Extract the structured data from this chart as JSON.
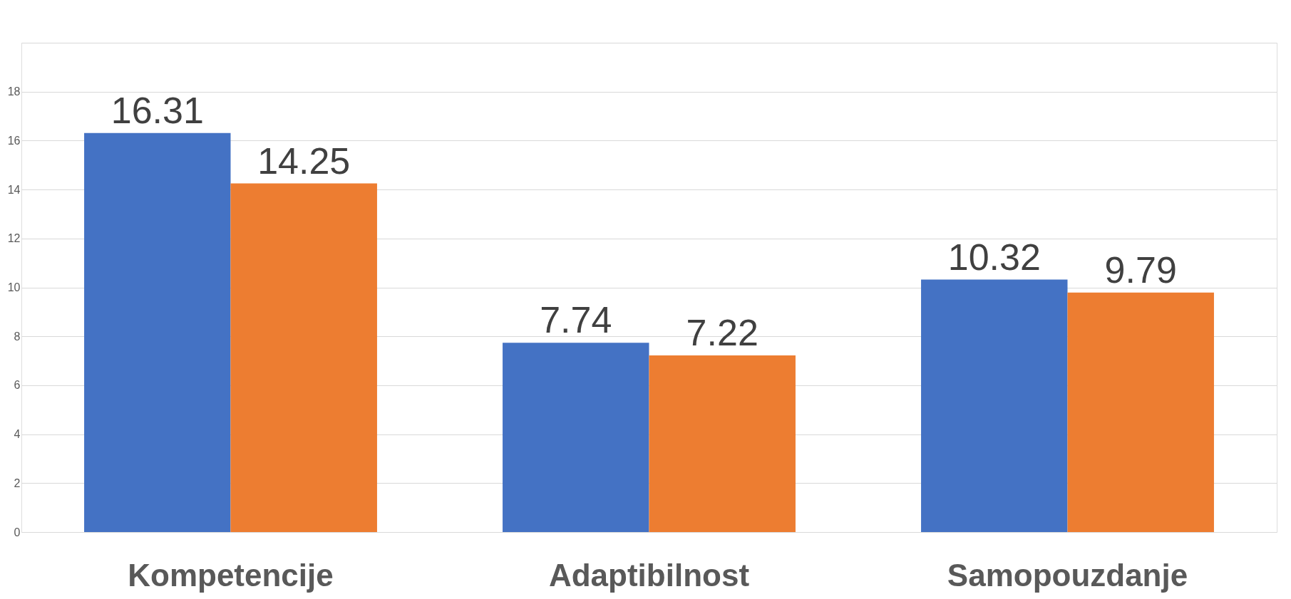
{
  "chart_data": {
    "type": "bar",
    "categories": [
      "Kompetencije",
      "Adaptibilnost",
      "Samopouzdanje"
    ],
    "series": [
      {
        "color": "#4472c4",
        "values": [
          16.31,
          7.74,
          10.32
        ]
      },
      {
        "color": "#ed7d31",
        "values": [
          14.25,
          7.22,
          9.79
        ]
      }
    ],
    "ylim": [
      0,
      20
    ],
    "yticks": [
      0,
      2,
      4,
      6,
      8,
      10,
      12,
      14,
      16,
      18,
      {
        "value": 20,
        "label": null
      }
    ],
    "grid": "y",
    "legend": false,
    "data_labels": true
  }
}
